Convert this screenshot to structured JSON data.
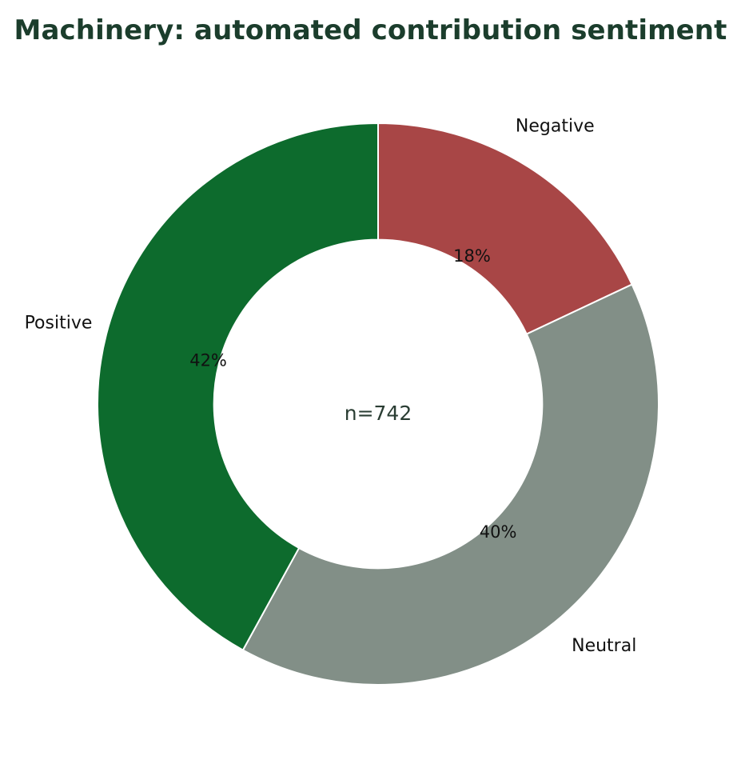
{
  "chart_data": {
    "type": "pie",
    "title": "Machinery: automated contribution sentiment",
    "center_label": "n=742",
    "categories": [
      "Negative",
      "Neutral",
      "Positive"
    ],
    "values": [
      18,
      40,
      42
    ],
    "value_labels": [
      "18%",
      "40%",
      "42%"
    ],
    "colors": [
      "#a84646",
      "#828f87",
      "#0d6b2d"
    ],
    "hole": 0.585,
    "start_angle_deg": 0,
    "direction": "clockwise",
    "legend": "none"
  },
  "colors": {
    "title": "#1b3d2c",
    "background": "#ffffff",
    "slice_border": "#ffffff"
  }
}
